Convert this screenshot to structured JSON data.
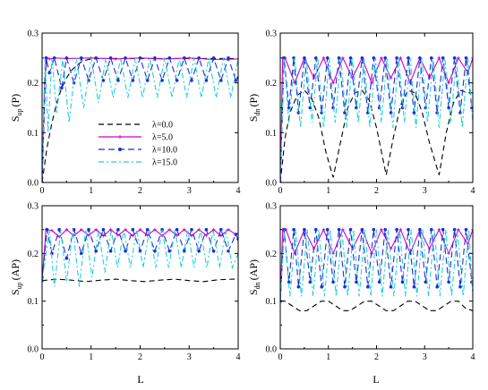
{
  "figure": {
    "bottom_xlabel_left": "L",
    "bottom_xlabel_right": "L"
  },
  "legend": {
    "entries": [
      {
        "label": "λ=0.0",
        "color": "#000000",
        "dash": "6,4",
        "marker": "none"
      },
      {
        "label": "λ=5.0",
        "color": "#cc00cc",
        "dash": "",
        "marker": "plus"
      },
      {
        "label": "λ=10.0",
        "color": "#1a2fd6",
        "dash": "7,4",
        "marker": "dot"
      },
      {
        "label": "λ=15.0",
        "color": "#1fd0d8",
        "dash": "6,3,2,3",
        "marker": "none"
      }
    ]
  },
  "chart_data": [
    {
      "id": "top-left",
      "type": "line",
      "ylabel_main": "S",
      "ylabel_sub": "up",
      "ylabel_suffix": "(P)",
      "xlim": [
        0,
        4
      ],
      "ylim": [
        0,
        0.3
      ],
      "xticks": [
        "0",
        "1",
        "2",
        "3",
        "4"
      ],
      "yticks": [
        "0.0",
        "0.1",
        "0.2",
        "0.3"
      ],
      "series": [
        {
          "name": "λ=0.0",
          "x": [
            0,
            0.1,
            0.2,
            0.3,
            0.4,
            0.5,
            0.6,
            0.7,
            0.8,
            0.9,
            1.0,
            1.2,
            1.5,
            2.0,
            2.5,
            3.0,
            3.5,
            4.0
          ],
          "y": [
            0,
            0.07,
            0.12,
            0.16,
            0.19,
            0.21,
            0.225,
            0.235,
            0.242,
            0.246,
            0.248,
            0.249,
            0.249,
            0.249,
            0.249,
            0.249,
            0.249,
            0.249
          ]
        },
        {
          "name": "λ=5.0",
          "x": [
            0,
            0.05,
            0.1,
            0.15,
            0.25,
            0.5,
            1.0,
            1.5,
            2.0,
            2.5,
            3.0,
            3.5,
            4.0
          ],
          "y": [
            0,
            0.2,
            0.25,
            0.248,
            0.25,
            0.249,
            0.25,
            0.248,
            0.25,
            0.248,
            0.25,
            0.247,
            0.248
          ]
        },
        {
          "name": "λ=10.0",
          "x": [
            0,
            0.08,
            0.15,
            0.25,
            0.4,
            0.5,
            0.65,
            0.8,
            0.95,
            1.1,
            1.25,
            1.4,
            1.55,
            1.7,
            1.85,
            2.0,
            2.15,
            2.3,
            2.45,
            2.6,
            2.75,
            2.9,
            3.05,
            3.2,
            3.35,
            3.5,
            3.65,
            3.8,
            3.95,
            4.0
          ],
          "y": [
            0,
            0.25,
            0.22,
            0.25,
            0.19,
            0.25,
            0.2,
            0.25,
            0.205,
            0.25,
            0.205,
            0.25,
            0.205,
            0.25,
            0.205,
            0.25,
            0.205,
            0.25,
            0.205,
            0.25,
            0.205,
            0.25,
            0.205,
            0.25,
            0.205,
            0.25,
            0.205,
            0.25,
            0.205,
            0.21
          ]
        },
        {
          "name": "λ=15.0",
          "x": [
            0,
            0.06,
            0.12,
            0.2,
            0.3,
            0.42,
            0.55,
            0.7,
            0.85,
            1.0,
            1.15,
            1.3,
            1.45,
            1.6,
            1.75,
            1.9,
            2.05,
            2.2,
            2.35,
            2.5,
            2.65,
            2.8,
            2.95,
            3.1,
            3.25,
            3.4,
            3.55,
            3.7,
            3.85,
            4.0
          ],
          "y": [
            0,
            0.25,
            0.1,
            0.25,
            0.14,
            0.25,
            0.12,
            0.25,
            0.15,
            0.25,
            0.16,
            0.25,
            0.17,
            0.25,
            0.17,
            0.25,
            0.17,
            0.25,
            0.17,
            0.25,
            0.17,
            0.25,
            0.17,
            0.25,
            0.17,
            0.25,
            0.17,
            0.25,
            0.17,
            0.25
          ]
        }
      ]
    },
    {
      "id": "top-right",
      "type": "line",
      "ylabel_main": "S",
      "ylabel_sub": "dn",
      "ylabel_suffix": "(P)",
      "xlim": [
        0,
        4
      ],
      "ylim": [
        0,
        0.3
      ],
      "xticks": [
        "0",
        "1",
        "2",
        "3",
        "4"
      ],
      "yticks": [
        "0.0",
        "0.1",
        "0.2",
        "0.3"
      ],
      "series": [
        {
          "name": "λ=0.0",
          "x": [
            0,
            0.1,
            0.2,
            0.35,
            0.5,
            0.65,
            0.8,
            0.95,
            1.1,
            1.25,
            1.4,
            1.55,
            1.7,
            1.85,
            2.0,
            2.2,
            2.35,
            2.5,
            2.65,
            2.8,
            2.95,
            3.1,
            3.3,
            3.45,
            3.6,
            3.75,
            3.9,
            4.0
          ],
          "y": [
            0,
            0.09,
            0.14,
            0.175,
            0.185,
            0.17,
            0.13,
            0.06,
            0.01,
            0.08,
            0.15,
            0.18,
            0.185,
            0.165,
            0.11,
            0.015,
            0.09,
            0.155,
            0.185,
            0.18,
            0.14,
            0.08,
            0.015,
            0.1,
            0.16,
            0.185,
            0.18,
            0.18
          ]
        },
        {
          "name": "λ=5.0",
          "x": [
            0,
            0.05,
            0.1,
            0.3,
            0.5,
            0.7,
            0.9,
            1.1,
            1.3,
            1.5,
            1.7,
            1.9,
            2.1,
            2.3,
            2.5,
            2.7,
            2.9,
            3.1,
            3.3,
            3.5,
            3.7,
            3.9,
            4.0
          ],
          "y": [
            0,
            0.25,
            0.25,
            0.2,
            0.25,
            0.21,
            0.25,
            0.2,
            0.25,
            0.21,
            0.25,
            0.2,
            0.25,
            0.21,
            0.25,
            0.2,
            0.25,
            0.21,
            0.25,
            0.2,
            0.25,
            0.22,
            0.25
          ]
        },
        {
          "name": "λ=10.0",
          "x": [
            0,
            0.08,
            0.18,
            0.28,
            0.38,
            0.5,
            0.62,
            0.74,
            0.86,
            0.98,
            1.1,
            1.22,
            1.34,
            1.46,
            1.58,
            1.7,
            1.82,
            1.94,
            2.06,
            2.18,
            2.3,
            2.42,
            2.54,
            2.66,
            2.78,
            2.9,
            3.02,
            3.14,
            3.26,
            3.38,
            3.5,
            3.62,
            3.74,
            3.86,
            3.98,
            4.0
          ],
          "y": [
            0,
            0.25,
            0.15,
            0.25,
            0.14,
            0.25,
            0.15,
            0.25,
            0.14,
            0.25,
            0.15,
            0.25,
            0.14,
            0.25,
            0.15,
            0.25,
            0.14,
            0.25,
            0.15,
            0.25,
            0.14,
            0.25,
            0.15,
            0.25,
            0.14,
            0.25,
            0.15,
            0.25,
            0.14,
            0.25,
            0.15,
            0.25,
            0.14,
            0.25,
            0.15,
            0.15
          ]
        },
        {
          "name": "λ=15.0",
          "x": [
            0,
            0.08,
            0.18,
            0.3,
            0.42,
            0.54,
            0.66,
            0.78,
            0.9,
            1.02,
            1.14,
            1.26,
            1.38,
            1.5,
            1.62,
            1.74,
            1.86,
            1.98,
            2.1,
            2.22,
            2.34,
            2.46,
            2.58,
            2.7,
            2.82,
            2.94,
            3.06,
            3.18,
            3.3,
            3.42,
            3.54,
            3.66,
            3.78,
            3.9,
            4.0
          ],
          "y": [
            0,
            0.25,
            0.12,
            0.25,
            0.11,
            0.25,
            0.12,
            0.25,
            0.11,
            0.25,
            0.12,
            0.25,
            0.11,
            0.25,
            0.12,
            0.25,
            0.11,
            0.25,
            0.12,
            0.25,
            0.11,
            0.25,
            0.12,
            0.25,
            0.11,
            0.25,
            0.12,
            0.25,
            0.11,
            0.25,
            0.12,
            0.25,
            0.11,
            0.25,
            0.12
          ]
        }
      ]
    },
    {
      "id": "bottom-left",
      "type": "line",
      "ylabel_main": "S",
      "ylabel_sub": "up",
      "ylabel_suffix": "(AP)",
      "xlim": [
        0,
        4
      ],
      "ylim": [
        0,
        0.3
      ],
      "xticks": [
        "0",
        "1",
        "2",
        "3",
        "4"
      ],
      "yticks": [
        "0.0",
        "0.1",
        "0.2",
        "0.3"
      ],
      "series": [
        {
          "name": "λ=0.0",
          "x": [
            0,
            0.3,
            0.6,
            0.9,
            1.2,
            1.5,
            1.8,
            2.1,
            2.4,
            2.7,
            3.0,
            3.3,
            3.6,
            3.9,
            4.0
          ],
          "y": [
            0.143,
            0.146,
            0.144,
            0.141,
            0.144,
            0.146,
            0.143,
            0.141,
            0.144,
            0.146,
            0.143,
            0.141,
            0.145,
            0.146,
            0.146
          ]
        },
        {
          "name": "λ=5.0",
          "x": [
            0,
            0.08,
            0.2,
            0.35,
            0.5,
            0.65,
            0.8,
            0.95,
            1.1,
            1.25,
            1.4,
            1.55,
            1.7,
            1.85,
            2.0,
            2.15,
            2.3,
            2.45,
            2.6,
            2.75,
            2.9,
            3.05,
            3.2,
            3.35,
            3.5,
            3.65,
            3.8,
            3.95,
            4.0
          ],
          "y": [
            0.143,
            0.25,
            0.248,
            0.235,
            0.25,
            0.237,
            0.25,
            0.238,
            0.25,
            0.237,
            0.25,
            0.238,
            0.25,
            0.237,
            0.25,
            0.238,
            0.25,
            0.237,
            0.25,
            0.238,
            0.25,
            0.237,
            0.25,
            0.238,
            0.25,
            0.237,
            0.25,
            0.24,
            0.242
          ]
        },
        {
          "name": "λ=10.0",
          "x": [
            0,
            0.1,
            0.2,
            0.35,
            0.5,
            0.65,
            0.8,
            0.95,
            1.1,
            1.25,
            1.4,
            1.55,
            1.7,
            1.85,
            2.0,
            2.15,
            2.3,
            2.45,
            2.6,
            2.75,
            2.9,
            3.05,
            3.2,
            3.35,
            3.5,
            3.65,
            3.8,
            3.95,
            4.0
          ],
          "y": [
            0.143,
            0.25,
            0.2,
            0.25,
            0.19,
            0.25,
            0.2,
            0.25,
            0.205,
            0.25,
            0.205,
            0.25,
            0.205,
            0.25,
            0.205,
            0.25,
            0.205,
            0.25,
            0.205,
            0.25,
            0.205,
            0.25,
            0.205,
            0.25,
            0.205,
            0.25,
            0.205,
            0.24,
            0.23
          ]
        },
        {
          "name": "λ=15.0",
          "x": [
            0,
            0.08,
            0.15,
            0.25,
            0.38,
            0.5,
            0.63,
            0.76,
            0.89,
            1.02,
            1.15,
            1.28,
            1.41,
            1.54,
            1.67,
            1.8,
            1.93,
            2.06,
            2.19,
            2.32,
            2.45,
            2.58,
            2.71,
            2.84,
            2.97,
            3.1,
            3.23,
            3.36,
            3.49,
            3.62,
            3.75,
            3.88,
            4.0
          ],
          "y": [
            0.143,
            0.2,
            0.25,
            0.13,
            0.25,
            0.14,
            0.25,
            0.13,
            0.25,
            0.15,
            0.25,
            0.16,
            0.25,
            0.17,
            0.25,
            0.17,
            0.25,
            0.17,
            0.25,
            0.17,
            0.25,
            0.17,
            0.25,
            0.17,
            0.25,
            0.17,
            0.25,
            0.17,
            0.25,
            0.17,
            0.25,
            0.17,
            0.2
          ]
        }
      ]
    },
    {
      "id": "bottom-right",
      "type": "line",
      "ylabel_main": "S",
      "ylabel_sub": "dn",
      "ylabel_suffix": "(AP)",
      "xlim": [
        0,
        4
      ],
      "ylim": [
        0,
        0.3
      ],
      "xticks": [
        "0",
        "1",
        "2",
        "3",
        "4"
      ],
      "yticks": [
        "0.0",
        "0.1",
        "0.2",
        "0.3"
      ],
      "series": [
        {
          "name": "λ=0.0",
          "x": [
            0,
            0.1,
            0.25,
            0.4,
            0.55,
            0.7,
            0.85,
            1.0,
            1.15,
            1.3,
            1.45,
            1.6,
            1.75,
            1.9,
            2.05,
            2.2,
            2.35,
            2.5,
            2.65,
            2.8,
            2.95,
            3.1,
            3.25,
            3.4,
            3.55,
            3.7,
            3.85,
            4.0
          ],
          "y": [
            0.1,
            0.1,
            0.09,
            0.08,
            0.08,
            0.09,
            0.1,
            0.1,
            0.09,
            0.08,
            0.08,
            0.09,
            0.1,
            0.1,
            0.09,
            0.08,
            0.08,
            0.09,
            0.1,
            0.1,
            0.09,
            0.08,
            0.08,
            0.09,
            0.1,
            0.1,
            0.085,
            0.08
          ]
        },
        {
          "name": "λ=5.0",
          "x": [
            0,
            0.05,
            0.12,
            0.3,
            0.5,
            0.7,
            0.9,
            1.1,
            1.3,
            1.5,
            1.7,
            1.9,
            2.1,
            2.3,
            2.5,
            2.7,
            2.9,
            3.1,
            3.3,
            3.5,
            3.7,
            3.9,
            4.0
          ],
          "y": [
            0.1,
            0.25,
            0.25,
            0.2,
            0.25,
            0.21,
            0.25,
            0.2,
            0.25,
            0.21,
            0.25,
            0.2,
            0.25,
            0.21,
            0.25,
            0.2,
            0.25,
            0.21,
            0.25,
            0.2,
            0.25,
            0.22,
            0.25
          ]
        },
        {
          "name": "λ=10.0",
          "x": [
            0,
            0.08,
            0.18,
            0.28,
            0.38,
            0.5,
            0.62,
            0.74,
            0.86,
            0.98,
            1.1,
            1.22,
            1.34,
            1.46,
            1.58,
            1.7,
            1.82,
            1.94,
            2.06,
            2.18,
            2.3,
            2.42,
            2.54,
            2.66,
            2.78,
            2.9,
            3.02,
            3.14,
            3.26,
            3.38,
            3.5,
            3.62,
            3.74,
            3.86,
            3.98,
            4.0
          ],
          "y": [
            0.1,
            0.25,
            0.14,
            0.25,
            0.13,
            0.25,
            0.14,
            0.25,
            0.13,
            0.25,
            0.14,
            0.25,
            0.13,
            0.25,
            0.14,
            0.25,
            0.13,
            0.25,
            0.14,
            0.25,
            0.13,
            0.25,
            0.14,
            0.25,
            0.13,
            0.25,
            0.14,
            0.25,
            0.13,
            0.25,
            0.14,
            0.25,
            0.13,
            0.25,
            0.14,
            0.14
          ]
        },
        {
          "name": "λ=15.0",
          "x": [
            0,
            0.08,
            0.2,
            0.32,
            0.44,
            0.56,
            0.68,
            0.8,
            0.92,
            1.04,
            1.16,
            1.28,
            1.4,
            1.52,
            1.64,
            1.76,
            1.88,
            2.0,
            2.12,
            2.24,
            2.36,
            2.48,
            2.6,
            2.72,
            2.84,
            2.96,
            3.08,
            3.2,
            3.32,
            3.44,
            3.56,
            3.68,
            3.8,
            3.92,
            4.0
          ],
          "y": [
            0.1,
            0.25,
            0.11,
            0.25,
            0.11,
            0.25,
            0.11,
            0.25,
            0.11,
            0.25,
            0.11,
            0.25,
            0.11,
            0.25,
            0.11,
            0.25,
            0.11,
            0.25,
            0.11,
            0.25,
            0.11,
            0.25,
            0.11,
            0.25,
            0.11,
            0.25,
            0.11,
            0.25,
            0.11,
            0.25,
            0.11,
            0.25,
            0.11,
            0.25,
            0.11
          ]
        }
      ]
    }
  ]
}
